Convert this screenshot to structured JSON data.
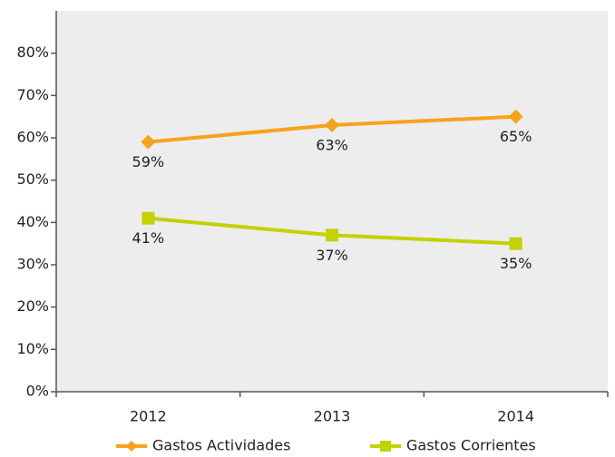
{
  "chart_data": {
    "type": "line",
    "categories": [
      "2012",
      "2013",
      "2014"
    ],
    "series": [
      {
        "name": "Gastos Actividades",
        "color": "#f5a31a",
        "marker": "diamond",
        "values": [
          59,
          63,
          65
        ],
        "value_labels": [
          "59%",
          "63%",
          "65%"
        ]
      },
      {
        "name": "Gastos Corrientes",
        "color": "#c3d200",
        "marker": "square",
        "values": [
          41,
          37,
          35
        ],
        "value_labels": [
          "41%",
          "37%",
          "35%"
        ]
      }
    ],
    "ylim": [
      0,
      90
    ],
    "yticks": [
      {
        "value": 0,
        "label": "0%"
      },
      {
        "value": 10,
        "label": "10%"
      },
      {
        "value": 20,
        "label": "20%"
      },
      {
        "value": 30,
        "label": "30%"
      },
      {
        "value": 40,
        "label": "40%"
      },
      {
        "value": 50,
        "label": "50%"
      },
      {
        "value": 60,
        "label": "60%"
      },
      {
        "value": 70,
        "label": "70%"
      },
      {
        "value": 80,
        "label": "80%"
      }
    ],
    "grid": false,
    "legend": "bottom"
  }
}
